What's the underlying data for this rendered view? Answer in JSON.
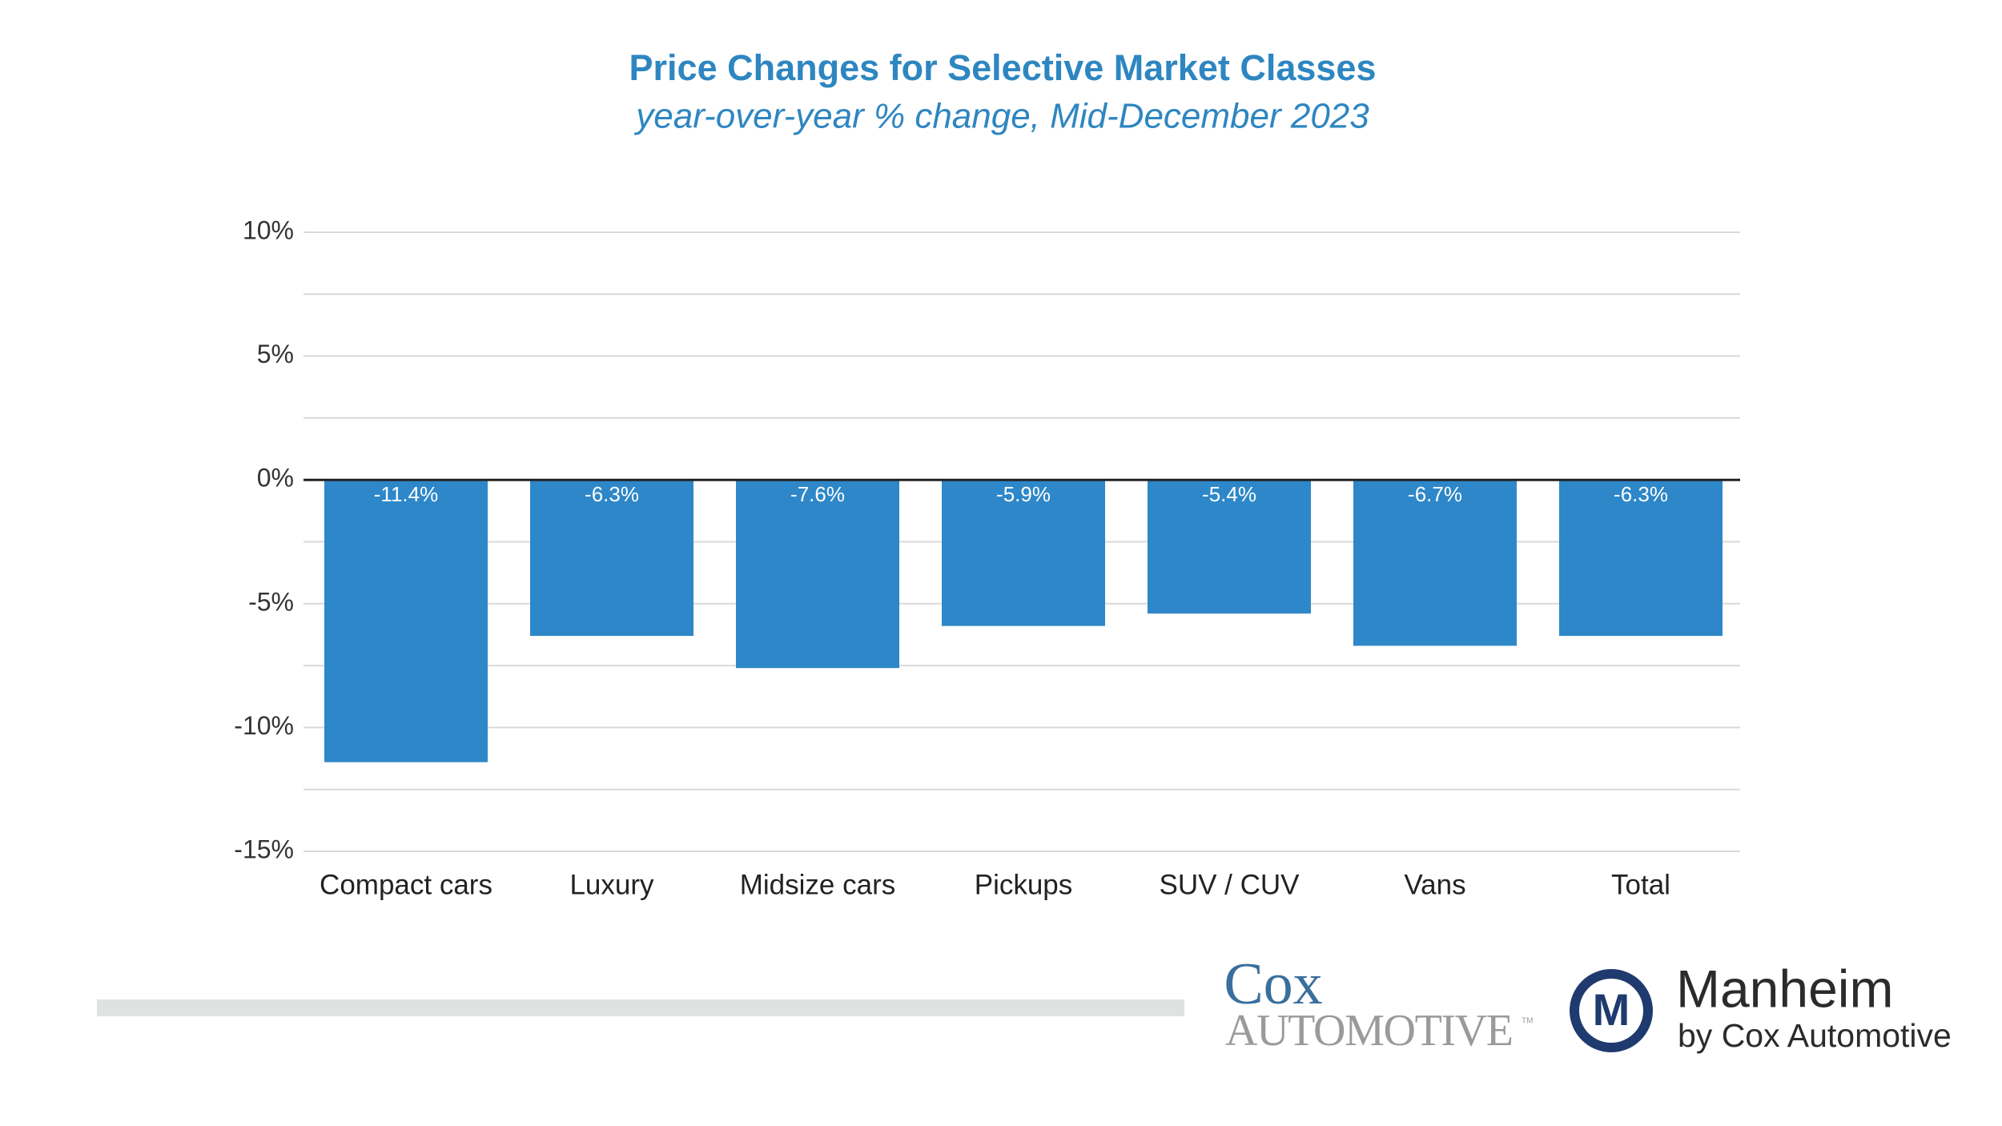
{
  "chart_data": {
    "type": "bar",
    "title": "Price Changes for Selective Market Classes",
    "subtitle": "year-over-year % change, Mid-December 2023",
    "categories": [
      "Compact cars",
      "Luxury",
      "Midsize cars",
      "Pickups",
      "SUV / CUV",
      "Vans",
      "Total"
    ],
    "values": [
      -11.4,
      -6.3,
      -7.6,
      -5.9,
      -5.4,
      -6.7,
      -6.3
    ],
    "value_labels": [
      "-11.4%",
      "-6.3%",
      "-7.6%",
      "-5.9%",
      "-5.4%",
      "-6.7%",
      "-6.3%"
    ],
    "color": "#2e87c8",
    "ylim": [
      -15,
      10
    ],
    "yticks": [
      {
        "value": 10,
        "label": "10%"
      },
      {
        "value": 5,
        "label": "5%"
      },
      {
        "value": 0,
        "label": "0%"
      },
      {
        "value": -5,
        "label": "-5%"
      },
      {
        "value": -10,
        "label": "-10%"
      },
      {
        "value": -15,
        "label": "-15%"
      }
    ],
    "minor_yticks": [
      7.5,
      2.5,
      -2.5,
      -7.5,
      -12.5
    ],
    "grid": true
  },
  "logos": {
    "cox_top": "Cox",
    "cox_bottom": "Automotive",
    "trademark": "TM",
    "manheim": "Manheim",
    "manheim_sub": "by Cox Automotive",
    "manheim_mark": "M"
  }
}
